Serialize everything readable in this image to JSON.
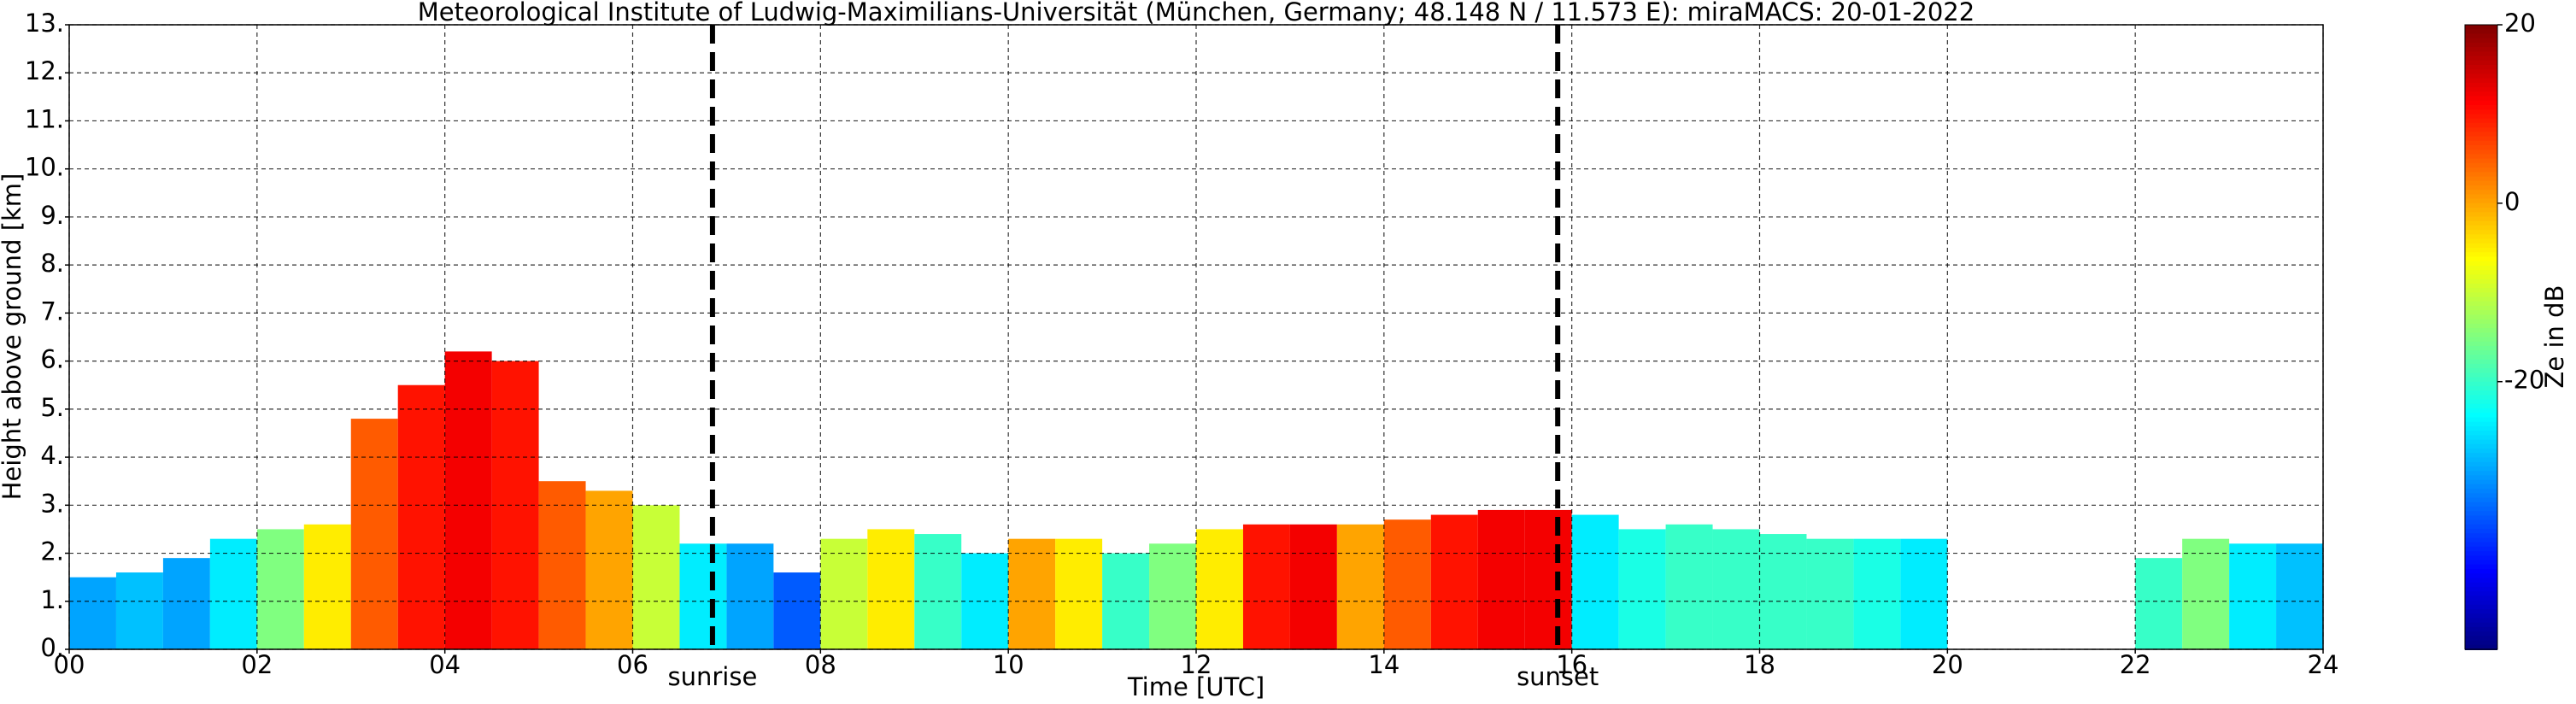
{
  "chart_data": {
    "type": "radar",
    "title": "Meteorological Institute of Ludwig-Maximilians-Universität (München, Germany; 48.148 N / 11.573 E):    miraMACS: 20-01-2022",
    "x_label": "Time [UTC]",
    "y_label": "Height above ground [km]",
    "colorbar_label": "Ze in dB",
    "x": [
      0,
      0.5,
      1,
      1.5,
      2,
      2.5,
      3,
      3.5,
      4,
      4.5,
      5,
      5.5,
      6,
      6.5,
      7,
      7.5,
      8,
      8.5,
      9,
      9.5,
      10,
      10.5,
      11,
      11.5,
      12,
      12.5,
      13,
      13.5,
      14,
      14.5,
      15,
      15.5,
      16,
      16.5,
      17,
      17.5,
      18,
      18.5,
      19,
      19.5,
      20,
      20.5,
      21,
      21.5,
      22,
      22.5,
      23,
      23.5
    ],
    "echo_top": [
      1.5,
      1.6,
      1.9,
      2.3,
      2.5,
      2.6,
      4.8,
      5.5,
      6.2,
      6.0,
      3.5,
      3.3,
      3.0,
      2.2,
      2.2,
      1.6,
      2.3,
      2.5,
      2.4,
      2.0,
      2.3,
      2.3,
      2.0,
      2.2,
      2.5,
      2.6,
      2.6,
      2.6,
      2.7,
      2.8,
      2.9,
      2.9,
      2.8,
      2.5,
      2.6,
      2.5,
      2.4,
      2.3,
      2.3,
      2.3,
      null,
      null,
      null,
      null,
      1.9,
      2.3,
      2.2,
      2.2
    ],
    "reflectivity": [
      -30,
      -28,
      -30,
      -25,
      -15,
      -5,
      5,
      10,
      12,
      10,
      5,
      0,
      -10,
      -25,
      -30,
      -35,
      -10,
      -5,
      -20,
      -25,
      0,
      -5,
      -20,
      -15,
      -5,
      10,
      12,
      0,
      5,
      10,
      12,
      12,
      -25,
      -22,
      -20,
      -20,
      -20,
      -20,
      -22,
      -25,
      null,
      null,
      null,
      null,
      -20,
      -15,
      -25,
      -28
    ],
    "xlim": [
      0,
      24
    ],
    "xticks": [
      {
        "value": 0,
        "label": "00"
      },
      {
        "value": 2,
        "label": "02"
      },
      {
        "value": 4,
        "label": "04"
      },
      {
        "value": 6,
        "label": "06"
      },
      {
        "value": 8,
        "label": "08"
      },
      {
        "value": 10,
        "label": "10"
      },
      {
        "value": 12,
        "label": "12"
      },
      {
        "value": 14,
        "label": "14"
      },
      {
        "value": 16,
        "label": "16"
      },
      {
        "value": 18,
        "label": "18"
      },
      {
        "value": 20,
        "label": "20"
      },
      {
        "value": 22,
        "label": "22"
      },
      {
        "value": 24,
        "label": "24"
      }
    ],
    "ylim": [
      0,
      13
    ],
    "yticks": [
      {
        "value": 0,
        "label": "0."
      },
      {
        "value": 1,
        "label": "1."
      },
      {
        "value": 2,
        "label": "2."
      },
      {
        "value": 3,
        "label": "3."
      },
      {
        "value": 4,
        "label": "4."
      },
      {
        "value": 5,
        "label": "5."
      },
      {
        "value": 6,
        "label": "6."
      },
      {
        "value": 7,
        "label": "7."
      },
      {
        "value": 8,
        "label": "8."
      },
      {
        "value": 9,
        "label": "9."
      },
      {
        "value": 10,
        "label": "10."
      },
      {
        "value": 11,
        "label": "11."
      },
      {
        "value": 12,
        "label": "12."
      },
      {
        "value": 13,
        "label": "13."
      }
    ],
    "clim": [
      -50,
      20
    ],
    "cticks": [
      20,
      0,
      -20
    ],
    "colormap": "jet",
    "grid": true,
    "annotations": [
      {
        "text": "sunrise",
        "x": 6.85
      },
      {
        "text": "sunset",
        "x": 15.85
      }
    ]
  }
}
